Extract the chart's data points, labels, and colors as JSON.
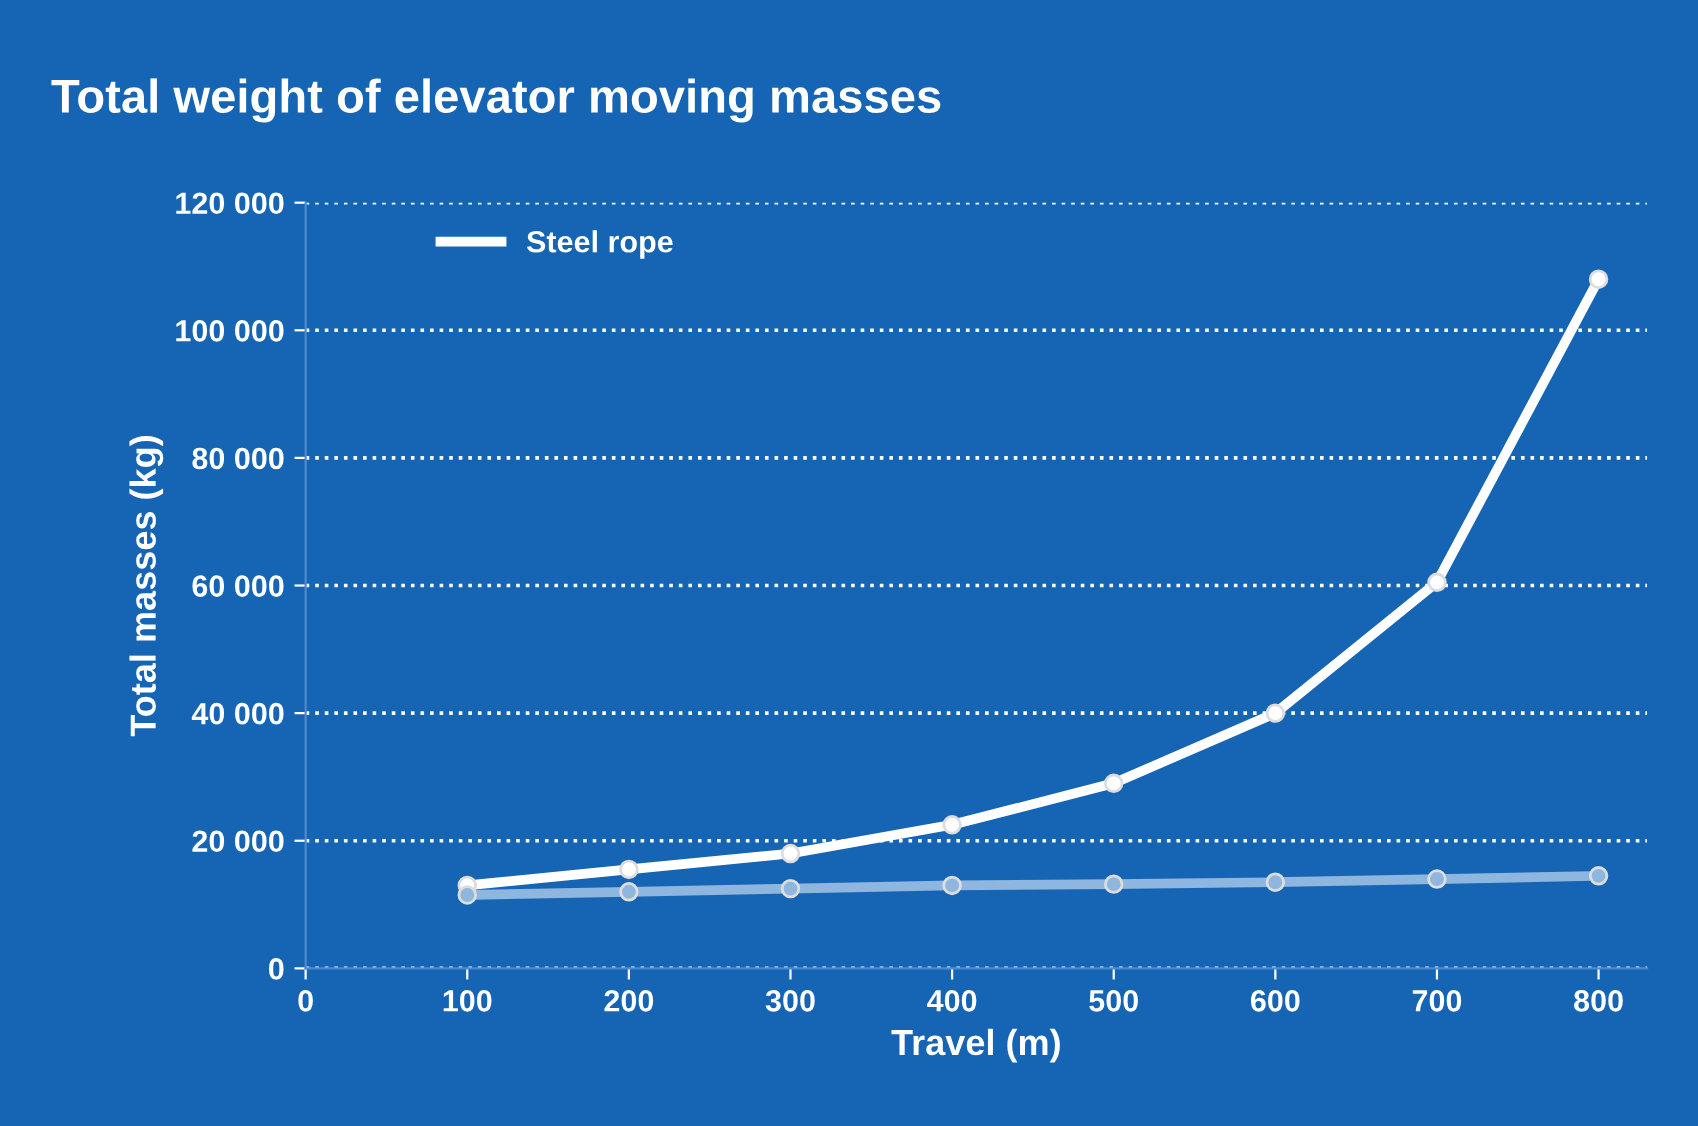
{
  "chart_data": {
    "type": "line",
    "title": "Total weight of elevator moving masses",
    "xlabel": "Travel (m)",
    "ylabel": "Total masses (kg)",
    "x": [
      100,
      200,
      300,
      400,
      500,
      600,
      700,
      800
    ],
    "series": [
      {
        "name": "Steel rope",
        "color": "#ffffff",
        "values": [
          13000,
          15500,
          18000,
          22500,
          29000,
          40000,
          60500,
          108000
        ]
      },
      {
        "color": "#8fb6de",
        "values": [
          11500,
          12000,
          12500,
          13000,
          13200,
          13500,
          14000,
          14500
        ]
      }
    ],
    "xlim": [
      0,
      830
    ],
    "xticks": [
      0,
      100,
      200,
      300,
      400,
      500,
      600,
      700,
      800
    ],
    "ylim": [
      0,
      120000
    ],
    "yticks": [
      {
        "value": 0,
        "label": "0"
      },
      {
        "value": 20000,
        "label": "20 000"
      },
      {
        "value": 40000,
        "label": "40 000"
      },
      {
        "value": 60000,
        "label": "60 000"
      },
      {
        "value": 80000,
        "label": "80 000"
      },
      {
        "value": 100000,
        "label": "100 000"
      },
      {
        "value": 120000,
        "label": "120 000"
      }
    ],
    "grid": "y",
    "legend": "top left",
    "marker": "circle",
    "line_style": "solid"
  }
}
